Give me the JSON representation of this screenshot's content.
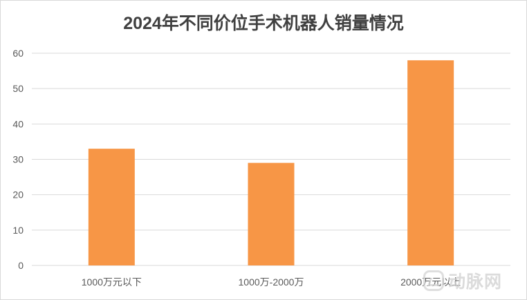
{
  "chart_data": {
    "type": "bar",
    "title": "2024年不同价位手术机器人销量情况",
    "categories": [
      "1000万元以下",
      "1000万-2000万",
      "2000万元以上"
    ],
    "values": [
      33,
      29,
      58
    ],
    "ylim": [
      0,
      60
    ],
    "yticks": [
      0,
      10,
      20,
      30,
      40,
      50,
      60
    ],
    "bar_color": "#F79646",
    "grid_color": "#D9D9D9",
    "grid": true,
    "legend": "none"
  },
  "watermark": {
    "text": "动脉网",
    "icon": "arteriorchain-logo-icon"
  }
}
